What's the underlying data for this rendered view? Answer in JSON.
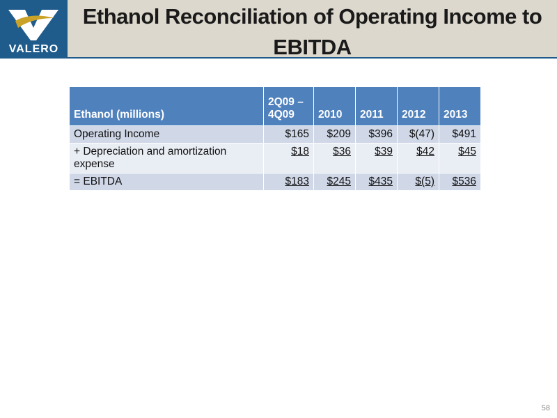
{
  "logo": {
    "text": "VALERO",
    "accent_color": "#c9a227",
    "bg_color": "#1f5c8c"
  },
  "title": "Ethanol Reconciliation of Operating Income to EBITDA",
  "table": {
    "headers": [
      "Ethanol (millions)",
      "2Q09 – 4Q09",
      "2010",
      "2011",
      "2012",
      "2013"
    ],
    "rows": [
      {
        "label": "Operating Income",
        "values": [
          "$165",
          "$209",
          "$396",
          "$(47)",
          "$491"
        ]
      },
      {
        "label": "+ Depreciation and amortization expense",
        "values": [
          "$18",
          "$36",
          "$39",
          "$42",
          "$45"
        ]
      },
      {
        "label": "= EBITDA",
        "values": [
          "$183",
          "$245",
          "$435",
          "$(5)",
          "$536"
        ]
      }
    ]
  },
  "page_number": "58"
}
